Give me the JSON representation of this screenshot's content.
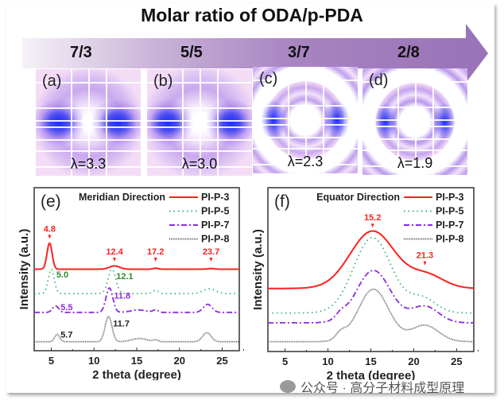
{
  "header": {
    "title": "Molar ratio of ODA/p-PDA",
    "ratios": [
      "7/3",
      "5/5",
      "3/7",
      "2/8"
    ]
  },
  "patterns": [
    {
      "label": "(a)",
      "lambda": "λ=3.3"
    },
    {
      "label": "(b)",
      "lambda": "λ=3.0"
    },
    {
      "label": "(c)",
      "lambda": "λ=2.3"
    },
    {
      "label": "(d)",
      "lambda": "λ=1.9"
    }
  ],
  "watermark": "公众号 · 高分子材料成型原理",
  "chart_data": [
    {
      "type": "line",
      "panel": "(e)",
      "title": "Meridian Direction",
      "xlabel": "2 theta (degree)",
      "ylabel": "Intensity (a.u.)",
      "xlim": [
        3,
        27
      ],
      "ylim": [
        0,
        10
      ],
      "xticks": [
        5,
        10,
        15,
        20,
        25
      ],
      "legend_position": "top-right",
      "series": [
        {
          "name": "PI-P-3",
          "color": "#ff2020",
          "style": "solid",
          "baseline": 5.0,
          "peaks": [
            [
              4.8,
              1.6,
              0.3
            ],
            [
              12.4,
              0.2,
              0.6
            ],
            [
              17.2,
              0.06,
              0.3
            ],
            [
              23.7,
              0.04,
              0.4
            ]
          ]
        },
        {
          "name": "PI-P-5",
          "color": "#3cb371",
          "style": "dotted",
          "baseline": 3.5,
          "peaks": [
            [
              5.0,
              1.5,
              0.35
            ],
            [
              12.1,
              1.5,
              0.45
            ],
            [
              17.2,
              0.2,
              0.35
            ],
            [
              23.5,
              0.3,
              0.7
            ]
          ]
        },
        {
          "name": "PI-P-7",
          "color": "#8a2be2",
          "style": "dashdot",
          "baseline": 2.35,
          "peaks": [
            [
              5.5,
              0.4,
              0.35
            ],
            [
              11.8,
              1.5,
              0.4
            ],
            [
              15.2,
              0.15,
              0.9
            ],
            [
              17.2,
              0.15,
              0.3
            ],
            [
              23.3,
              0.5,
              0.5
            ]
          ]
        },
        {
          "name": "PI-P-8",
          "color": "#555555",
          "style": "dense-dot",
          "baseline": 0.55,
          "peaks": [
            [
              5.7,
              0.45,
              0.3
            ],
            [
              11.7,
              1.55,
              0.4
            ],
            [
              15.3,
              0.2,
              0.9
            ],
            [
              17.2,
              0.1,
              0.3
            ],
            [
              23.2,
              0.55,
              0.5
            ]
          ]
        }
      ],
      "annotations": [
        {
          "text": "4.8",
          "x": 4.8,
          "y": 7.3,
          "color": "#ff2020",
          "arrow": true
        },
        {
          "text": "12.4",
          "x": 12.4,
          "y": 5.9,
          "color": "#ff2020",
          "arrow": true
        },
        {
          "text": "17.2",
          "x": 17.2,
          "y": 5.9,
          "color": "#ff2020",
          "arrow": true
        },
        {
          "text": "23.7",
          "x": 23.7,
          "y": 5.9,
          "color": "#ff2020",
          "arrow": true
        },
        {
          "text": "5.0",
          "x": 6.3,
          "y": 4.5,
          "color": "#2e8b2e"
        },
        {
          "text": "12.1",
          "x": 13.6,
          "y": 4.4,
          "color": "#2e8b2e"
        },
        {
          "text": "11.8",
          "x": 13.3,
          "y": 3.2,
          "color": "#8a2be2"
        },
        {
          "text": "5.5",
          "x": 6.8,
          "y": 2.5,
          "color": "#8a2be2"
        },
        {
          "text": "11.7",
          "x": 13.2,
          "y": 1.5,
          "color": "#222222"
        },
        {
          "text": "5.7",
          "x": 6.8,
          "y": 0.8,
          "color": "#222222"
        }
      ]
    },
    {
      "type": "line",
      "panel": "(f)",
      "title": "Equator Direction",
      "xlabel": "2 theta (degree)",
      "ylabel": "Intensity (a.u.)",
      "xlim": [
        3,
        27
      ],
      "ylim": [
        0,
        10
      ],
      "xticks": [
        5,
        10,
        15,
        20,
        25
      ],
      "legend_position": "top-right",
      "series": [
        {
          "name": "PI-P-3",
          "color": "#ff2020",
          "style": "solid",
          "baseline": 3.85,
          "peaks": [
            [
              15.2,
              3.5,
              2.6
            ],
            [
              21.5,
              0.8,
              2.0
            ]
          ]
        },
        {
          "name": "PI-P-5",
          "color": "#3cb371",
          "style": "dotted",
          "baseline": 2.35,
          "peaks": [
            [
              15.2,
              4.6,
              2.2
            ],
            [
              21.0,
              0.9,
              1.6
            ]
          ]
        },
        {
          "name": "PI-P-7",
          "color": "#8a2be2",
          "style": "dashdot",
          "baseline": 1.75,
          "peaks": [
            [
              15.3,
              3.2,
              2.0
            ],
            [
              21.3,
              1.0,
              1.6
            ],
            [
              11.5,
              0.3,
              0.6
            ]
          ]
        },
        {
          "name": "PI-P-8",
          "color": "#555555",
          "style": "dense-dot",
          "baseline": 0.6,
          "peaks": [
            [
              15.3,
              3.2,
              1.8
            ],
            [
              21.3,
              1.0,
              1.6
            ],
            [
              11.5,
              0.4,
              0.6
            ]
          ]
        }
      ],
      "annotations": [
        {
          "text": "15.2",
          "x": 15.2,
          "y": 8.0,
          "color": "#ff2020",
          "arrow": true
        },
        {
          "text": "21.3",
          "x": 21.3,
          "y": 5.7,
          "color": "#ff2020",
          "arrow": true
        }
      ]
    }
  ]
}
